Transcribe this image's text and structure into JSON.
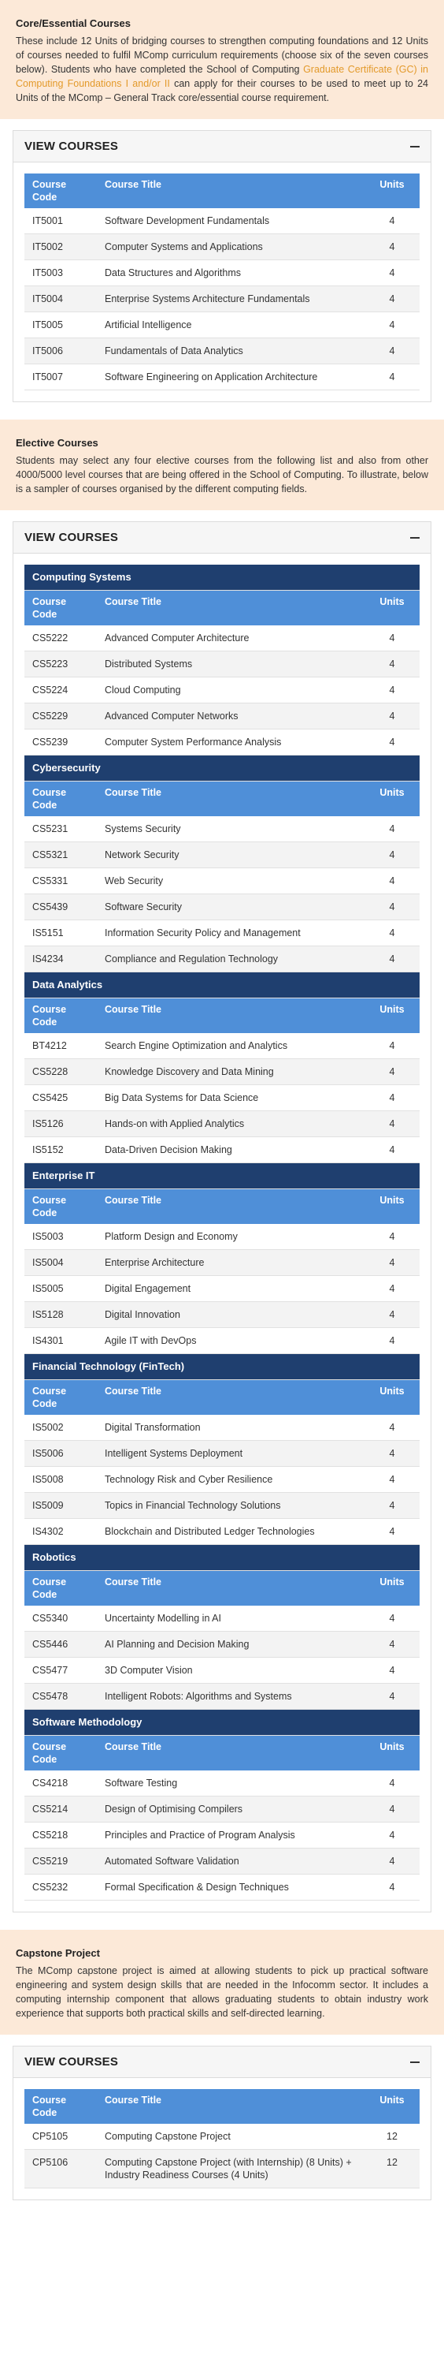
{
  "core": {
    "title": "Core/Essential Courses",
    "text_before": "These include 12 Units of bridging courses to strengthen computing foundations and 12 Units of courses needed to fulfil MComp curriculum requirements (choose six of the seven courses below). Students who have completed the School of Computing ",
    "link": "Graduate Certificate (GC) in Computing Foundations I and/or II",
    "text_after": " can apply for their courses to be used to meet up to 24 Units of the MComp – General Track core/essential course requirement.",
    "accordion_title": "VIEW COURSES",
    "headers": [
      "Course Code",
      "Course Title",
      "Units"
    ],
    "rows": [
      [
        "IT5001",
        "Software Development Fundamentals",
        "4"
      ],
      [
        "IT5002",
        "Computer Systems and Applications",
        "4"
      ],
      [
        "IT5003",
        "Data Structures and Algorithms",
        "4"
      ],
      [
        "IT5004",
        "Enterprise Systems Architecture Fundamentals",
        "4"
      ],
      [
        "IT5005",
        "Artificial Intelligence",
        "4"
      ],
      [
        "IT5006",
        "Fundamentals of Data Analytics",
        "4"
      ],
      [
        "IT5007",
        "Software Engineering on Application Architecture",
        "4"
      ]
    ]
  },
  "elective": {
    "title": "Elective Courses",
    "text": "Students may select any four elective courses from the following list and also from other 4000/5000 level courses that are being offered in the School of Computing. To illustrate, below is a sampler of courses organised by the different computing fields.",
    "accordion_title": "VIEW COURSES",
    "headers": [
      "Course Code",
      "Course Title",
      "Units"
    ],
    "groups": [
      {
        "name": "Computing Systems",
        "rows": [
          [
            "CS5222",
            "Advanced Computer Architecture",
            "4"
          ],
          [
            "CS5223",
            "Distributed Systems",
            "4"
          ],
          [
            "CS5224",
            "Cloud Computing",
            "4"
          ],
          [
            "CS5229",
            "Advanced Computer Networks",
            "4"
          ],
          [
            "CS5239",
            "Computer System Performance Analysis",
            "4"
          ]
        ]
      },
      {
        "name": "Cybersecurity",
        "rows": [
          [
            "CS5231",
            "Systems Security",
            "4"
          ],
          [
            "CS5321",
            "Network Security",
            "4"
          ],
          [
            "CS5331",
            "Web Security",
            "4"
          ],
          [
            "CS5439",
            "Software Security",
            "4"
          ],
          [
            "IS5151",
            "Information Security Policy and Management",
            "4"
          ],
          [
            "IS4234",
            "Compliance and Regulation Technology",
            "4"
          ]
        ]
      },
      {
        "name": "Data Analytics",
        "rows": [
          [
            "BT4212",
            "Search Engine Optimization and Analytics",
            "4"
          ],
          [
            "CS5228",
            "Knowledge Discovery and Data Mining",
            "4"
          ],
          [
            "CS5425",
            "Big Data Systems for Data Science",
            "4"
          ],
          [
            "IS5126",
            "Hands-on with Applied Analytics",
            "4"
          ],
          [
            "IS5152",
            "Data-Driven Decision Making",
            "4"
          ]
        ]
      },
      {
        "name": "Enterprise IT",
        "rows": [
          [
            "IS5003",
            "Platform Design and Economy",
            "4"
          ],
          [
            "IS5004",
            "Enterprise Architecture",
            "4"
          ],
          [
            "IS5005",
            "Digital Engagement",
            "4"
          ],
          [
            "IS5128",
            "Digital Innovation",
            "4"
          ],
          [
            "IS4301",
            "Agile IT with DevOps",
            "4"
          ]
        ]
      },
      {
        "name": "Financial Technology (FinTech)",
        "rows": [
          [
            "IS5002",
            "Digital Transformation",
            "4"
          ],
          [
            "IS5006",
            "Intelligent Systems Deployment",
            "4"
          ],
          [
            "IS5008",
            "Technology Risk and Cyber Resilience",
            "4"
          ],
          [
            "IS5009",
            "Topics in Financial Technology Solutions",
            "4"
          ],
          [
            "IS4302",
            "Blockchain and Distributed Ledger Technologies",
            "4"
          ]
        ]
      },
      {
        "name": "Robotics",
        "rows": [
          [
            "CS5340",
            "Uncertainty Modelling in AI",
            "4"
          ],
          [
            "CS5446",
            "AI Planning and Decision Making",
            "4"
          ],
          [
            "CS5477",
            "3D Computer Vision",
            "4"
          ],
          [
            "CS5478",
            "Intelligent Robots: Algorithms and Systems",
            "4"
          ]
        ]
      },
      {
        "name": "Software Methodology",
        "rows": [
          [
            "CS4218",
            "Software Testing",
            "4"
          ],
          [
            "CS5214",
            "Design of Optimising Compilers",
            "4"
          ],
          [
            "CS5218",
            "Principles and Practice of Program Analysis",
            "4"
          ],
          [
            "CS5219",
            "Automated Software Validation",
            "4"
          ],
          [
            "CS5232",
            "Formal Specification & Design Techniques",
            "4"
          ]
        ]
      }
    ]
  },
  "capstone": {
    "title": "Capstone Project",
    "text": "The MComp capstone project is aimed at allowing students to pick up practical software engineering and system design skills that are needed in the Infocomm sector. It includes a computing internship component that allows graduating students to obtain industry work experience that supports both practical skills and self-directed learning.",
    "accordion_title": "VIEW COURSES",
    "headers": [
      "Course Code",
      "Course Title",
      "Units"
    ],
    "rows": [
      [
        "CP5105",
        "Computing Capstone Project",
        "12"
      ],
      [
        "CP5106",
        "Computing Capstone Project (with Internship) (8 Units) + Industry Readiness Courses (4 Units)",
        "12"
      ]
    ]
  },
  "colors": {
    "intro_bg": "#fce9d8",
    "header_blue": "#4f8fd8",
    "group_navy": "#1f3f6f",
    "link": "#e39a2b"
  },
  "icons": {
    "collapse": "minus-icon"
  }
}
